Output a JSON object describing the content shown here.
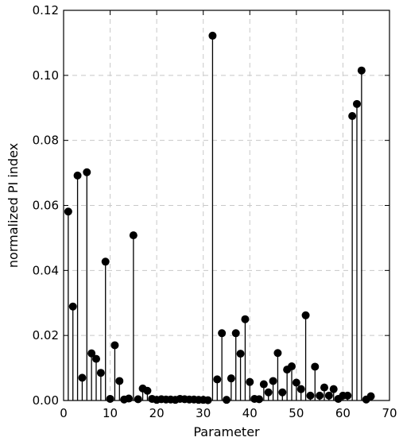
{
  "chart_data": {
    "type": "stem",
    "title": "",
    "xlabel": "Parameter",
    "ylabel": "normalized PI index",
    "xlim": [
      0,
      70
    ],
    "ylim": [
      0,
      0.12
    ],
    "xticks": [
      0,
      10,
      20,
      30,
      40,
      50,
      60,
      70
    ],
    "yticks": [
      0.0,
      0.02,
      0.04,
      0.06,
      0.08,
      0.1,
      0.12
    ],
    "xtick_labels": [
      "0",
      "10",
      "20",
      "30",
      "40",
      "50",
      "60",
      "70"
    ],
    "ytick_labels": [
      "0.00",
      "0.02",
      "0.04",
      "0.06",
      "0.08",
      "0.10",
      "0.12"
    ],
    "grid": true,
    "colors": {
      "marker": "#000000",
      "grid": "#c8c8c8"
    },
    "x": [
      1,
      2,
      3,
      4,
      5,
      6,
      7,
      8,
      9,
      10,
      11,
      12,
      13,
      14,
      15,
      16,
      17,
      18,
      19,
      20,
      21,
      22,
      23,
      24,
      25,
      26,
      27,
      28,
      29,
      30,
      31,
      32,
      33,
      34,
      35,
      36,
      37,
      38,
      39,
      40,
      41,
      42,
      43,
      44,
      45,
      46,
      47,
      48,
      49,
      50,
      51,
      52,
      53,
      54,
      55,
      56,
      57,
      58,
      59,
      60,
      61,
      62,
      63,
      64,
      65,
      66
    ],
    "values": [
      0.0581,
      0.0289,
      0.0692,
      0.007,
      0.0702,
      0.0145,
      0.0128,
      0.0085,
      0.0427,
      0.0005,
      0.017,
      0.006,
      0.0003,
      0.0006,
      0.0508,
      0.0004,
      0.0037,
      0.003,
      0.0005,
      0.0002,
      0.0004,
      0.0003,
      0.0003,
      0.0002,
      0.0005,
      0.0004,
      0.0003,
      0.0003,
      0.0002,
      0.0002,
      0.0001,
      0.1122,
      0.0065,
      0.0207,
      0.0002,
      0.0068,
      0.0207,
      0.0144,
      0.025,
      0.0057,
      0.0005,
      0.0004,
      0.005,
      0.0025,
      0.006,
      0.0146,
      0.0025,
      0.0095,
      0.0105,
      0.0055,
      0.0035,
      0.0262,
      0.0015,
      0.0104,
      0.0015,
      0.004,
      0.0015,
      0.0035,
      0.0005,
      0.0015,
      0.0015,
      0.0875,
      0.0912,
      0.1015,
      0.0003,
      0.0013
    ]
  }
}
